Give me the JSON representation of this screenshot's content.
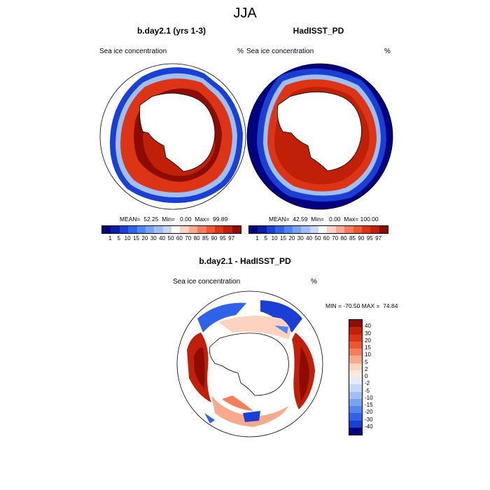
{
  "title": "JJA",
  "panels": [
    {
      "title": "b.day2.1 (yrs 1-3)",
      "left_label": "Sea ice concentration",
      "right_label": "%",
      "stats": "MEAN=  52.25  Min=   0.00  Max=  99.89"
    },
    {
      "title": "HadISST_PD",
      "left_label": "Sea ice concentration",
      "right_label": "%",
      "stats": "MEAN=  42.59  Min=   0.00  Max= 100.00"
    },
    {
      "title": "b.day2.1 - HadISST_PD",
      "left_label": "Sea ice concentration",
      "right_label": "%",
      "stats": "MIN = -70.50 MAX =  74.84"
    }
  ],
  "abs_colorbar": {
    "labels": [
      "1",
      "5",
      "10",
      "15",
      "20",
      "30",
      "40",
      "50",
      "60",
      "70",
      "80",
      "85",
      "90",
      "95",
      "97"
    ],
    "colors": [
      "#000080",
      "#0c1ea0",
      "#1a3fd4",
      "#2e62e8",
      "#4f86f0",
      "#76a4f2",
      "#9ebef4",
      "#c4d8f6",
      "#ffffff",
      "#fcd2c0",
      "#f8a88c",
      "#f47e5c",
      "#ee5630",
      "#dc3414",
      "#c02008",
      "#8c0c00"
    ]
  },
  "diff_colorbar": {
    "labels": [
      "40",
      "30",
      "20",
      "15",
      "10",
      "5",
      "2",
      "0",
      "-2",
      "-5",
      "-10",
      "-15",
      "-20",
      "-30",
      "-40"
    ],
    "colors": [
      "#8c0c00",
      "#c02008",
      "#dc3414",
      "#ee5630",
      "#f47e5c",
      "#f8a88c",
      "#fcd2c0",
      "#fde8dc",
      "#e4ecf8",
      "#c4d8f6",
      "#9ebef4",
      "#76a4f2",
      "#4f86f0",
      "#2e62e8",
      "#1a3fd4",
      "#000080"
    ]
  },
  "units": "%"
}
